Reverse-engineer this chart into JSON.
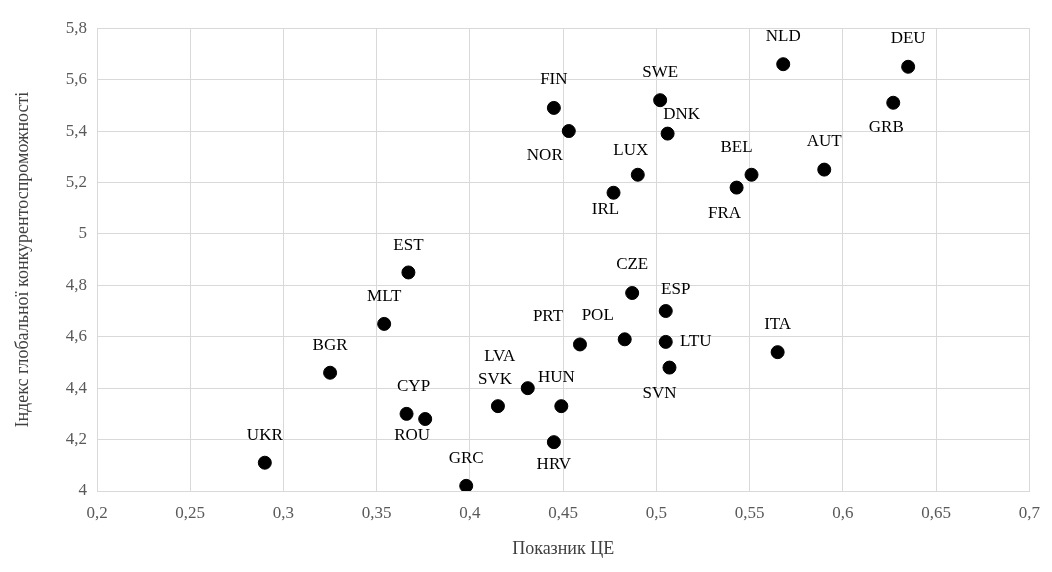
{
  "chart_data": {
    "type": "scatter",
    "xlabel": "Показник ЦЕ",
    "ylabel": "Індекс глобальної конкурентоспроможності",
    "x": [
      0.29,
      0.325,
      0.354,
      0.367,
      0.366,
      0.376,
      0.398,
      0.415,
      0.431,
      0.449,
      0.445,
      0.459,
      0.483,
      0.487,
      0.505,
      0.505,
      0.507,
      0.565,
      0.445,
      0.453,
      0.502,
      0.506,
      0.49,
      0.477,
      0.551,
      0.543,
      0.59,
      0.568,
      0.635,
      0.627
    ],
    "values": [
      4.11,
      4.46,
      4.65,
      4.85,
      4.3,
      4.28,
      4.02,
      4.33,
      4.4,
      4.33,
      4.19,
      4.57,
      4.59,
      4.77,
      4.7,
      4.58,
      4.48,
      4.54,
      5.49,
      5.4,
      5.52,
      5.39,
      5.23,
      5.16,
      5.23,
      5.18,
      5.25,
      5.66,
      5.65,
      5.51
    ],
    "color": "#000000",
    "marker": "circle",
    "grid": true,
    "xlim": [
      0.2,
      0.7
    ],
    "ylim": [
      4,
      5.8
    ],
    "xticks": [
      {
        "value": 0.2,
        "label": "0,2"
      },
      {
        "value": 0.25,
        "label": "0,25"
      },
      {
        "value": 0.3,
        "label": "0,3"
      },
      {
        "value": 0.35,
        "label": "0,35"
      },
      {
        "value": 0.4,
        "label": "0,4"
      },
      {
        "value": 0.45,
        "label": "0,45"
      },
      {
        "value": 0.5,
        "label": "0,5"
      },
      {
        "value": 0.55,
        "label": "0,55"
      },
      {
        "value": 0.6,
        "label": "0,6"
      },
      {
        "value": 0.65,
        "label": "0,65"
      },
      {
        "value": 0.7,
        "label": "0,7"
      }
    ],
    "yticks": [
      4,
      {
        "value": 4.2,
        "label": "4,2"
      },
      {
        "value": 4.4,
        "label": "4,4"
      },
      {
        "value": 4.6,
        "label": "4,6"
      },
      {
        "value": 4.8,
        "label": "4,8"
      },
      5,
      {
        "value": 5.2,
        "label": "5,2"
      },
      {
        "value": 5.4,
        "label": "5,4"
      },
      {
        "value": 5.6,
        "label": "5,6"
      },
      {
        "value": 5.8,
        "label": "5,8"
      }
    ],
    "annotations": [
      {
        "text": "UKR",
        "x": 0.29,
        "y": 4.11
      },
      {
        "text": "BGR",
        "x": 0.325,
        "y": 4.46
      },
      {
        "text": "MLT",
        "x": 0.354,
        "y": 4.65
      },
      {
        "text": "EST",
        "x": 0.367,
        "y": 4.85
      },
      {
        "text": "CYP",
        "x": 0.366,
        "y": 4.3
      },
      {
        "text": "ROU",
        "x": 0.376,
        "y": 4.28
      },
      {
        "text": "GRC",
        "x": 0.398,
        "y": 4.02
      },
      {
        "text": "SVK",
        "x": 0.415,
        "y": 4.33
      },
      {
        "text": "LVA",
        "x": 0.431,
        "y": 4.4
      },
      {
        "text": "HUN",
        "x": 0.449,
        "y": 4.33
      },
      {
        "text": "HRV",
        "x": 0.445,
        "y": 4.19
      },
      {
        "text": "PRT",
        "x": 0.459,
        "y": 4.57
      },
      {
        "text": "POL",
        "x": 0.483,
        "y": 4.59
      },
      {
        "text": "CZE",
        "x": 0.487,
        "y": 4.77
      },
      {
        "text": "ESP",
        "x": 0.505,
        "y": 4.7
      },
      {
        "text": "LTU",
        "x": 0.505,
        "y": 4.58
      },
      {
        "text": "SVN",
        "x": 0.507,
        "y": 4.48
      },
      {
        "text": "ITA",
        "x": 0.565,
        "y": 4.54
      },
      {
        "text": "FIN",
        "x": 0.445,
        "y": 5.49
      },
      {
        "text": "NOR",
        "x": 0.453,
        "y": 5.4
      },
      {
        "text": "SWE",
        "x": 0.502,
        "y": 5.52
      },
      {
        "text": "DNK",
        "x": 0.506,
        "y": 5.39
      },
      {
        "text": "LUX",
        "x": 0.49,
        "y": 5.23
      },
      {
        "text": "IRL",
        "x": 0.477,
        "y": 5.16
      },
      {
        "text": "BEL",
        "x": 0.551,
        "y": 5.23
      },
      {
        "text": "FRA",
        "x": 0.543,
        "y": 5.18
      },
      {
        "text": "AUT",
        "x": 0.59,
        "y": 5.25
      },
      {
        "text": "NLD",
        "x": 0.568,
        "y": 5.66
      },
      {
        "text": "DEU",
        "x": 0.635,
        "y": 5.65
      },
      {
        "text": "GRB",
        "x": 0.627,
        "y": 5.51
      }
    ]
  }
}
